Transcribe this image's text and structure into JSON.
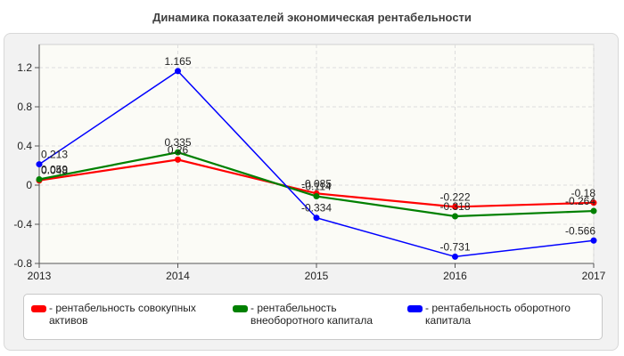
{
  "chart_data": {
    "type": "line",
    "title": "Динамика показателей экономическая рентабельности",
    "x": [
      "2013",
      "2014",
      "2015",
      "2016",
      "2017"
    ],
    "ylim": [
      -0.8,
      1.35
    ],
    "yticks": [
      "1.2",
      "0.8",
      "0.4",
      "0",
      "-0.4",
      "-0.8"
    ],
    "grid": true,
    "legend_position": "bottom",
    "series": [
      {
        "name": "- рентабельность совокупных активов",
        "color": "#ff0000",
        "values": [
          0.048,
          0.26,
          -0.085,
          -0.222,
          -0.18
        ],
        "labels": [
          "0.048",
          "0.26",
          "-0.085",
          "-0.222",
          "-0.18"
        ]
      },
      {
        "name": "- рентабельность внеоборотного капитала",
        "color": "#008000",
        "values": [
          0.059,
          0.335,
          -0.114,
          -0.318,
          -0.264
        ],
        "labels": [
          "0.059",
          "0.335",
          "-0.114",
          "-0.318",
          "-0.264"
        ]
      },
      {
        "name": "- рентабельность оборотного капитала",
        "color": "#0000ff",
        "values": [
          0.213,
          1.165,
          -0.334,
          -0.731,
          -0.566
        ],
        "labels": [
          "0.213",
          "1.165",
          "-0.334",
          "-0.731",
          "-0.566"
        ]
      }
    ]
  }
}
